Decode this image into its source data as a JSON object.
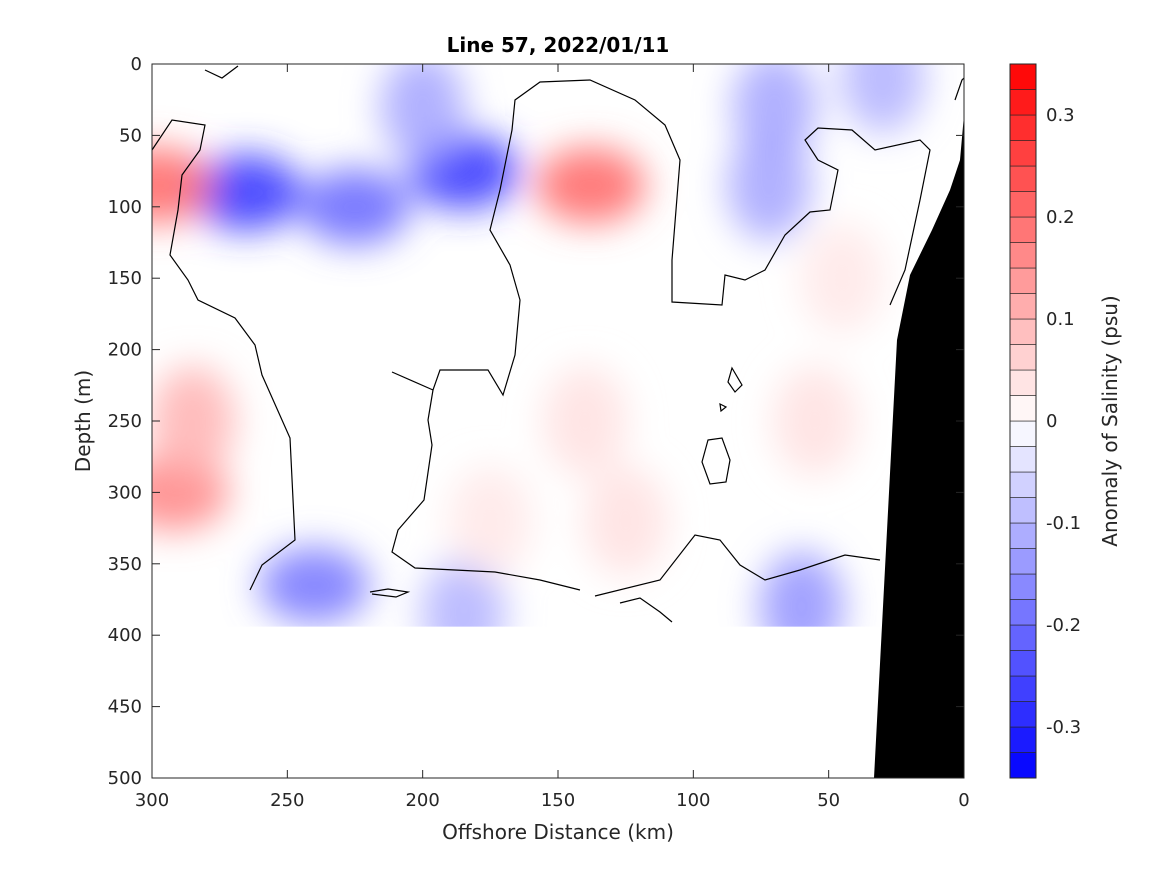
{
  "chart_data": {
    "type": "heatmap",
    "title": "Line 57, 2022/01/11",
    "xlabel": "Offshore Distance (km)",
    "ylabel": "Depth (m)",
    "colorbar_label": "Anomaly of Salinity (psu)",
    "xlim": [
      300,
      0
    ],
    "ylim": [
      500,
      0
    ],
    "x_ticks": [
      "300",
      "250",
      "200",
      "150",
      "100",
      "50",
      "0"
    ],
    "x_tick_values": [
      300,
      250,
      200,
      150,
      100,
      50,
      0
    ],
    "y_ticks": [
      "0",
      "50",
      "100",
      "150",
      "200",
      "250",
      "300",
      "350",
      "400",
      "450",
      "500"
    ],
    "y_tick_values": [
      0,
      50,
      100,
      150,
      200,
      250,
      300,
      350,
      400,
      450,
      500
    ],
    "colorbar_ticks": [
      "0.3",
      "0.2",
      "0.1",
      "0",
      "-0.1",
      "-0.2",
      "-0.3"
    ],
    "colorbar_tick_values": [
      0.3,
      0.2,
      0.1,
      0,
      -0.1,
      -0.2,
      -0.3
    ],
    "clim": [
      -0.35,
      0.35
    ],
    "colorbar_levels": 28,
    "contour_levels": [
      0
    ],
    "colors": {
      "positive": "#ff0000",
      "negative": "#0000ff",
      "zero": "#ffffff",
      "land": "#000000"
    },
    "anomaly_features": [
      {
        "x": 265,
        "y": 90,
        "value": -0.27
      },
      {
        "x": 185,
        "y": 75,
        "value": -0.27
      },
      {
        "x": 225,
        "y": 100,
        "value": -0.2
      },
      {
        "x": 200,
        "y": 30,
        "value": -0.12
      },
      {
        "x": 240,
        "y": 365,
        "value": -0.18
      },
      {
        "x": 70,
        "y": 30,
        "value": -0.12
      },
      {
        "x": 72,
        "y": 85,
        "value": -0.12
      },
      {
        "x": 30,
        "y": 10,
        "value": -0.1
      },
      {
        "x": 60,
        "y": 380,
        "value": -0.14
      },
      {
        "x": 185,
        "y": 385,
        "value": -0.1
      },
      {
        "x": 138,
        "y": 85,
        "value": 0.2
      },
      {
        "x": 298,
        "y": 85,
        "value": 0.2
      },
      {
        "x": 292,
        "y": 300,
        "value": 0.16
      },
      {
        "x": 285,
        "y": 250,
        "value": 0.1
      },
      {
        "x": 140,
        "y": 250,
        "value": 0.04
      },
      {
        "x": 55,
        "y": 250,
        "value": 0.04
      },
      {
        "x": 45,
        "y": 150,
        "value": 0.03
      },
      {
        "x": 125,
        "y": 320,
        "value": 0.04
      },
      {
        "x": 175,
        "y": 320,
        "value": 0.03
      }
    ],
    "data_extent_depth": 380
  }
}
